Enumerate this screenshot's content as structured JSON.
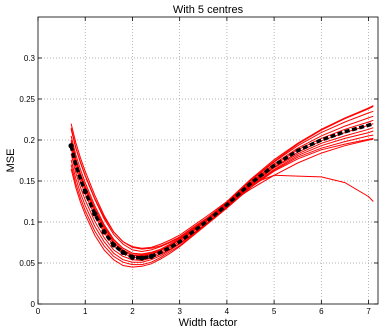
{
  "chart_data": {
    "type": "line",
    "title": "With 5 centres",
    "xlabel": "Width factor",
    "ylabel": "MSE",
    "xlim": [
      0,
      7.2
    ],
    "ylim": [
      0,
      0.35
    ],
    "xticks": [
      0,
      1,
      2,
      3,
      4,
      5,
      6,
      7
    ],
    "xtick_labels": [
      "0",
      "1",
      "2",
      "3",
      "4",
      "5",
      "6",
      "7"
    ],
    "yticks": [
      0,
      0.05,
      0.1,
      0.15,
      0.2,
      0.25,
      0.3
    ],
    "ytick_labels": [
      "0",
      "0.05",
      "0.1",
      "0.15",
      "0.2",
      "0.25",
      "0.3"
    ],
    "grid": true,
    "x": [
      0.7,
      0.8,
      0.9,
      1.0,
      1.2,
      1.4,
      1.6,
      1.8,
      2.0,
      2.2,
      2.4,
      2.6,
      2.8,
      3.0,
      3.3,
      3.6,
      4.0,
      4.5,
      5.0,
      5.5,
      6.0,
      6.5,
      7.0,
      7.1
    ],
    "mean_series": {
      "color": "#000000",
      "values": [
        0.193,
        0.17,
        0.152,
        0.137,
        0.11,
        0.088,
        0.072,
        0.063,
        0.057,
        0.056,
        0.058,
        0.063,
        0.069,
        0.076,
        0.089,
        0.102,
        0.121,
        0.147,
        0.169,
        0.187,
        0.2,
        0.21,
        0.218,
        0.22
      ]
    },
    "mean_markers_x": [
      0.7,
      1.0,
      1.2,
      1.4,
      1.6,
      1.8,
      2.0,
      2.2,
      2.4
    ],
    "run_color": "#ff0000",
    "runs": [
      [
        0.22,
        0.197,
        0.178,
        0.162,
        0.133,
        0.108,
        0.088,
        0.076,
        0.069,
        0.067,
        0.068,
        0.071,
        0.076,
        0.082,
        0.094,
        0.106,
        0.124,
        0.151,
        0.174,
        0.195,
        0.212,
        0.226,
        0.238,
        0.241
      ],
      [
        0.213,
        0.19,
        0.172,
        0.156,
        0.128,
        0.104,
        0.085,
        0.073,
        0.066,
        0.064,
        0.066,
        0.07,
        0.075,
        0.081,
        0.093,
        0.105,
        0.123,
        0.15,
        0.173,
        0.193,
        0.209,
        0.222,
        0.233,
        0.235
      ],
      [
        0.205,
        0.182,
        0.164,
        0.148,
        0.12,
        0.097,
        0.079,
        0.068,
        0.062,
        0.06,
        0.062,
        0.066,
        0.072,
        0.079,
        0.091,
        0.104,
        0.122,
        0.148,
        0.171,
        0.19,
        0.205,
        0.217,
        0.227,
        0.229
      ],
      [
        0.198,
        0.175,
        0.157,
        0.142,
        0.115,
        0.093,
        0.076,
        0.066,
        0.06,
        0.059,
        0.061,
        0.065,
        0.071,
        0.078,
        0.09,
        0.103,
        0.121,
        0.147,
        0.169,
        0.188,
        0.202,
        0.213,
        0.222,
        0.224
      ],
      [
        0.19,
        0.167,
        0.149,
        0.134,
        0.108,
        0.087,
        0.071,
        0.062,
        0.057,
        0.056,
        0.058,
        0.063,
        0.069,
        0.076,
        0.089,
        0.102,
        0.12,
        0.146,
        0.167,
        0.185,
        0.199,
        0.209,
        0.218,
        0.22
      ],
      [
        0.183,
        0.16,
        0.142,
        0.127,
        0.101,
        0.081,
        0.066,
        0.058,
        0.054,
        0.053,
        0.056,
        0.061,
        0.067,
        0.074,
        0.087,
        0.1,
        0.119,
        0.145,
        0.166,
        0.183,
        0.196,
        0.205,
        0.213,
        0.215
      ],
      [
        0.176,
        0.153,
        0.135,
        0.12,
        0.095,
        0.076,
        0.062,
        0.054,
        0.051,
        0.051,
        0.054,
        0.059,
        0.066,
        0.073,
        0.086,
        0.1,
        0.118,
        0.144,
        0.164,
        0.181,
        0.193,
        0.202,
        0.209,
        0.211
      ],
      [
        0.17,
        0.147,
        0.129,
        0.114,
        0.089,
        0.071,
        0.058,
        0.051,
        0.048,
        0.048,
        0.051,
        0.057,
        0.064,
        0.071,
        0.085,
        0.099,
        0.118,
        0.143,
        0.163,
        0.179,
        0.19,
        0.198,
        0.205,
        0.206
      ],
      [
        0.165,
        0.142,
        0.124,
        0.109,
        0.084,
        0.066,
        0.054,
        0.047,
        0.045,
        0.046,
        0.049,
        0.055,
        0.062,
        0.07,
        0.084,
        0.098,
        0.117,
        0.142,
        0.162,
        0.177,
        0.188,
        0.195,
        0.201,
        0.202
      ],
      [
        0.195,
        0.172,
        0.154,
        0.139,
        0.112,
        0.09,
        0.074,
        0.064,
        0.059,
        0.058,
        0.06,
        0.065,
        0.071,
        0.078,
        0.091,
        0.104,
        0.123,
        0.146,
        0.157,
        0.156,
        0.155,
        0.148,
        0.131,
        0.125
      ],
      [
        0.2,
        0.177,
        0.159,
        0.144,
        0.117,
        0.095,
        0.078,
        0.068,
        0.062,
        0.061,
        0.063,
        0.067,
        0.073,
        0.08,
        0.092,
        0.105,
        0.121,
        0.14,
        0.157,
        0.172,
        0.184,
        0.193,
        0.2,
        0.201
      ],
      [
        0.215,
        0.191,
        0.173,
        0.157,
        0.129,
        0.106,
        0.088,
        0.076,
        0.07,
        0.068,
        0.069,
        0.073,
        0.078,
        0.084,
        0.096,
        0.108,
        0.125,
        0.152,
        0.176,
        0.196,
        0.213,
        0.227,
        0.239,
        0.242
      ]
    ]
  }
}
